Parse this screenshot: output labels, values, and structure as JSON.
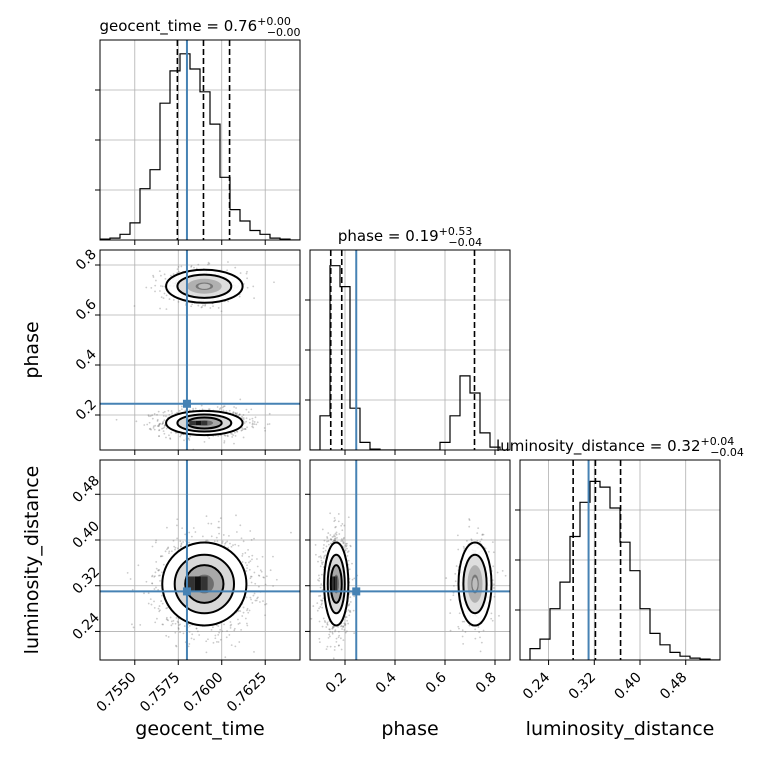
{
  "chart_data": {
    "type": "corner",
    "parameters": [
      {
        "key": "geocent_time",
        "label": "geocent_time",
        "range": [
          0.753,
          0.7645
        ],
        "ticks": [
          "0.7550",
          "0.7575",
          "0.7600",
          "0.7625"
        ],
        "truth": 0.758,
        "quantiles": [
          0.75745,
          0.75895,
          0.76045
        ],
        "title_name": "geocent_time",
        "title_median": "0.76",
        "title_plus": "+0.00",
        "title_minus": "−0.00"
      },
      {
        "key": "phase",
        "label": "phase",
        "range": [
          0.06,
          0.86
        ],
        "ticks": [
          "0.2",
          "0.4",
          "0.6",
          "0.8"
        ],
        "truth": 0.245,
        "quantiles": [
          0.143,
          0.187,
          0.718
        ],
        "title_name": "phase",
        "title_median": "0.19",
        "title_plus": "+0.53",
        "title_minus": "−0.04"
      },
      {
        "key": "luminosity_distance",
        "label": "luminosity_distance",
        "range": [
          0.19,
          0.54
        ],
        "ticks": [
          "0.24",
          "0.32",
          "0.40",
          "0.48"
        ],
        "truth": 0.31,
        "quantiles": [
          0.283,
          0.322,
          0.366
        ],
        "title_name": "luminosity_distance",
        "title_median": "0.32",
        "title_plus": "+0.04",
        "title_minus": "−0.04"
      }
    ],
    "histograms": {
      "geocent_time": [
        0.005,
        0.01,
        0.03,
        0.09,
        0.27,
        0.37,
        0.72,
        0.89,
        0.98,
        0.9,
        0.78,
        0.61,
        0.33,
        0.16,
        0.1,
        0.05,
        0.03,
        0.01,
        0.005,
        0
      ],
      "phase": [
        0,
        0.18,
        0.97,
        0.86,
        0.22,
        0.04,
        0.005,
        0,
        0,
        0,
        0,
        0,
        0,
        0.04,
        0.18,
        0.39,
        0.3,
        0.09,
        0.015,
        0
      ],
      "luminosity_distance": [
        0,
        0.06,
        0.11,
        0.27,
        0.41,
        0.65,
        0.83,
        0.94,
        0.91,
        0.8,
        0.62,
        0.47,
        0.27,
        0.14,
        0.08,
        0.04,
        0.02,
        0.01,
        0.005,
        0
      ]
    },
    "modes": [
      {
        "x": "geocent_time",
        "y": "phase",
        "blobs": [
          {
            "cx": 0.759,
            "cy": 0.168,
            "sx": 0.001,
            "sy": 0.022,
            "w": 1.0
          },
          {
            "cx": 0.759,
            "cy": 0.715,
            "sx": 0.001,
            "sy": 0.03,
            "w": 0.42
          }
        ]
      },
      {
        "x": "geocent_time",
        "y": "luminosity_distance",
        "blobs": [
          {
            "cx": 0.759,
            "cy": 0.323,
            "sx": 0.0011,
            "sy": 0.033,
            "w": 1.0
          }
        ]
      },
      {
        "x": "phase",
        "y": "luminosity_distance",
        "blobs": [
          {
            "cx": 0.165,
            "cy": 0.323,
            "sx": 0.022,
            "sy": 0.033,
            "w": 1.0
          },
          {
            "cx": 0.72,
            "cy": 0.323,
            "sx": 0.03,
            "sy": 0.033,
            "w": 0.42
          }
        ]
      }
    ],
    "truth_color": "#4682b4",
    "grid": true
  }
}
